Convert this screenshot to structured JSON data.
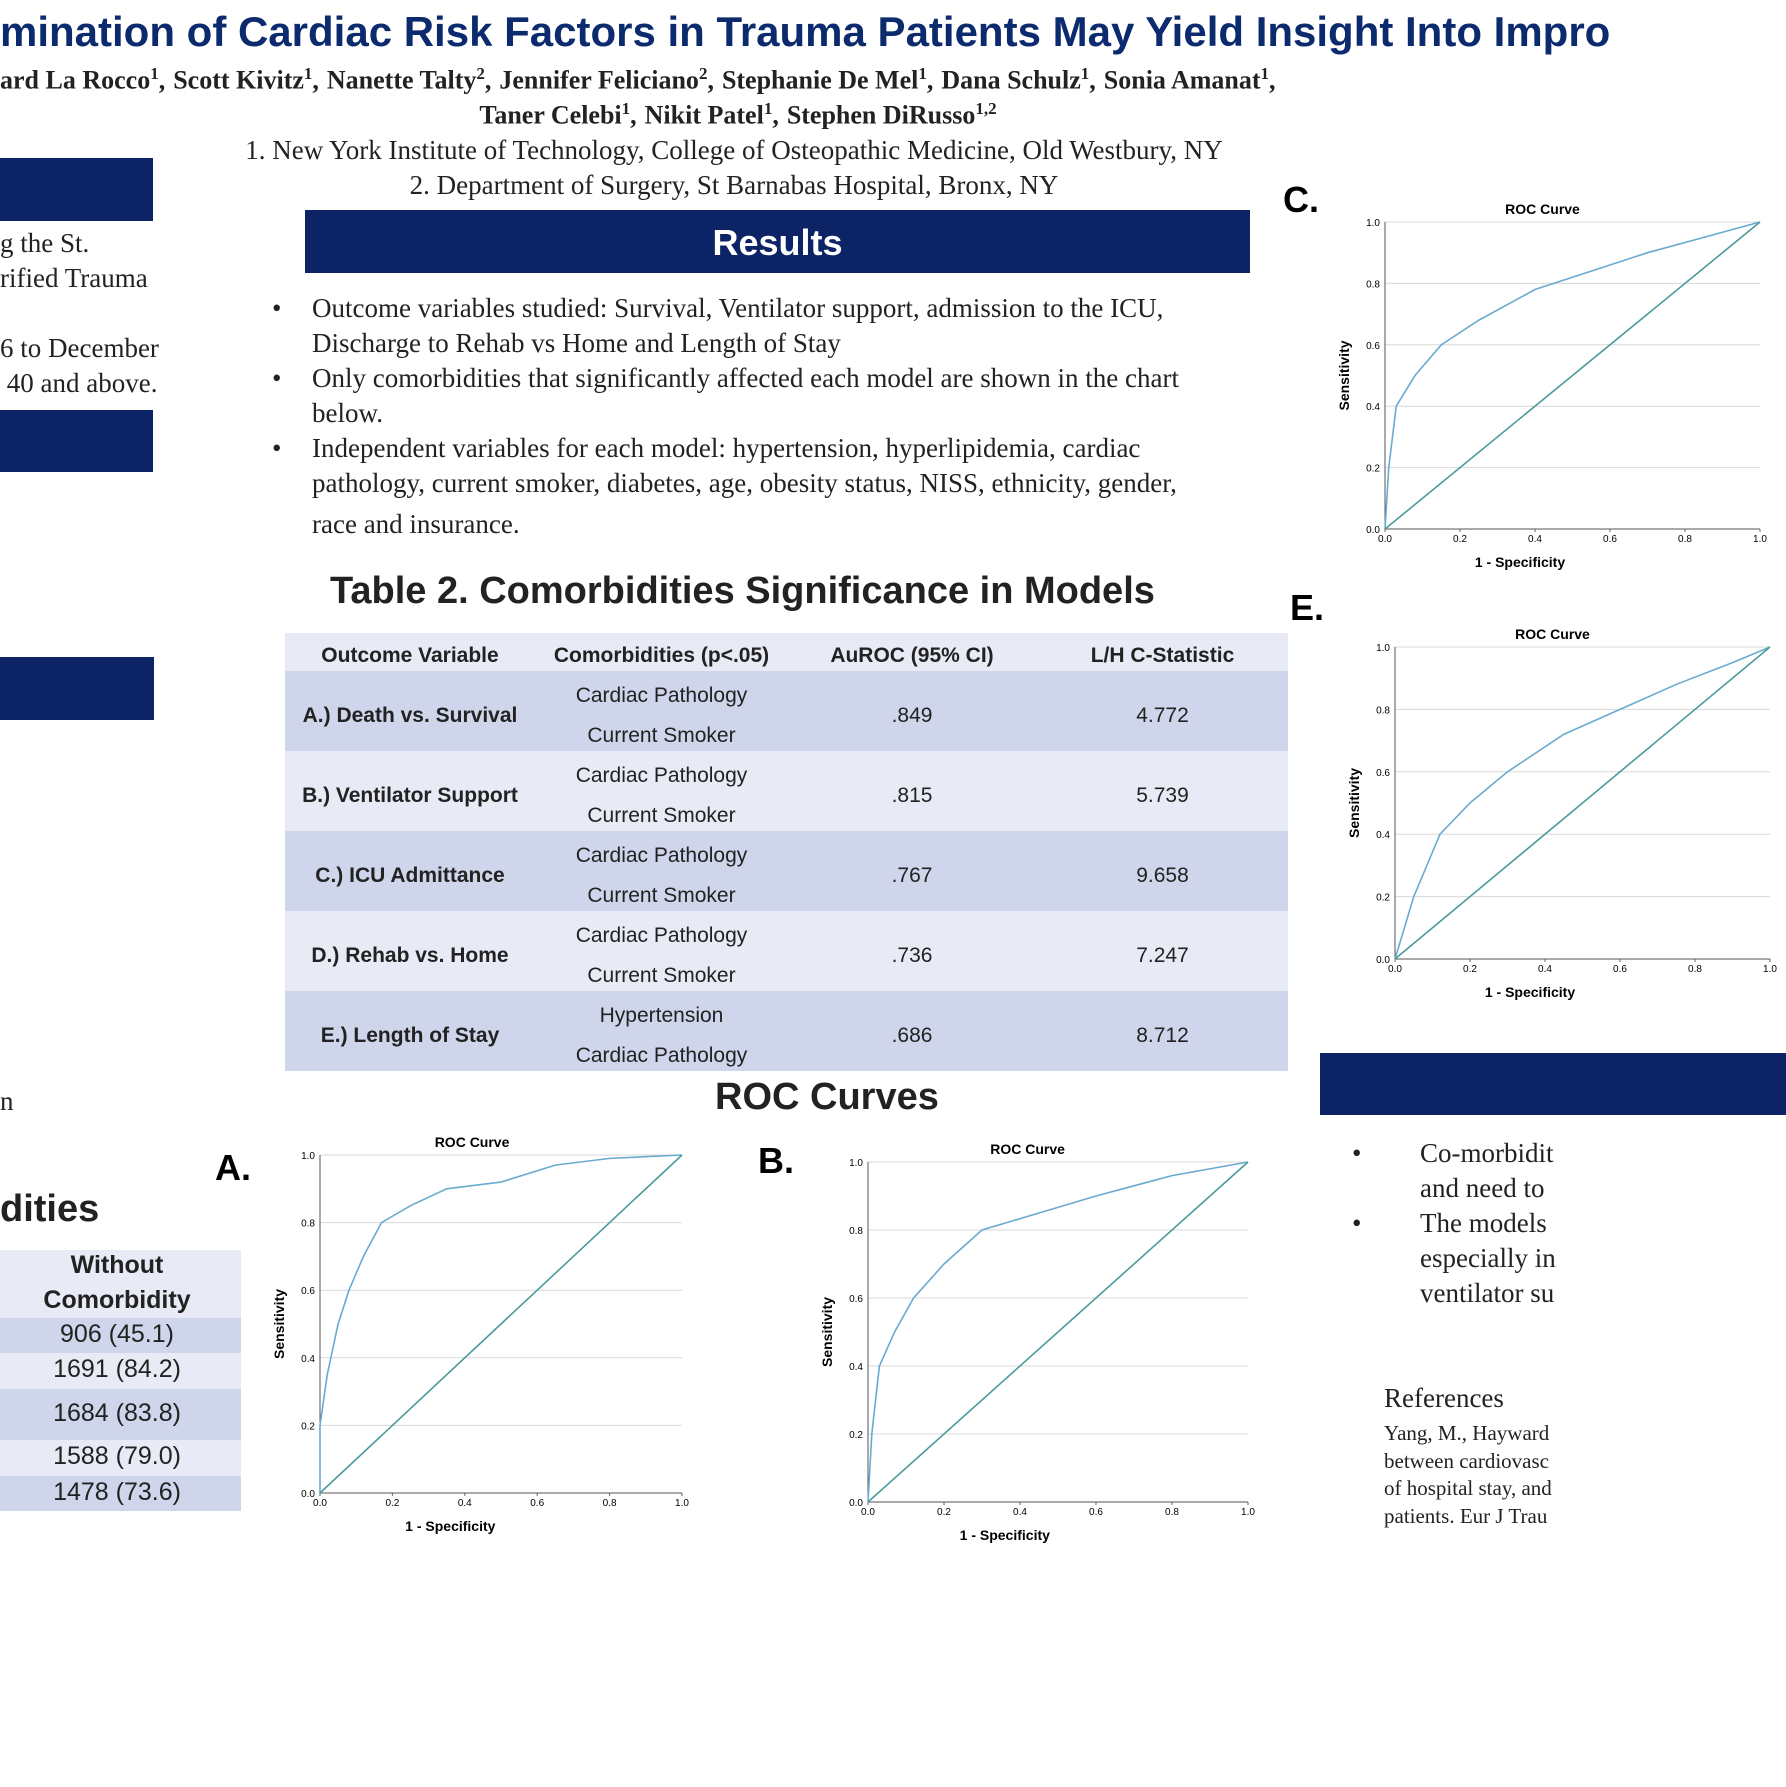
{
  "header": {
    "title": "mination of Cardiac Risk Factors in Trauma Patients May Yield Insight Into Impro",
    "authors_line1": [
      {
        "name": "ard La Rocco",
        "sup": "1",
        "sep": ","
      },
      {
        "name": "Scott Kivitz",
        "sup": "1",
        "sep": ","
      },
      {
        "name": "Nanette Talty",
        "sup": "2",
        "sep": ","
      },
      {
        "name": "Jennifer Feliciano",
        "sup": "2",
        "sep": ","
      },
      {
        "name": "Stephanie De Mel",
        "sup": "1",
        "sep": ","
      },
      {
        "name": "Dana Schulz",
        "sup": "1",
        "sep": ","
      },
      {
        "name": "Sonia Amanat",
        "sup": "1",
        "sep": ","
      }
    ],
    "authors_line2": [
      {
        "name": "Taner Celebi",
        "sup": "1",
        "sep": ","
      },
      {
        "name": "Nikit Patel",
        "sup": "1",
        "sep": ","
      },
      {
        "name": "Stephen DiRusso",
        "sup": "1,2"
      }
    ],
    "affiliations": [
      "1. New York Institute of Technology, College of Osteopathic Medicine, Old Westbury, NY",
      "2. Department of Surgery, St Barnabas Hospital, Bronx, NY"
    ]
  },
  "left": {
    "fragments": [
      "g the St.",
      "rified Trauma",
      "6 to December",
      " 40 and above.",
      "n"
    ],
    "heading": "dities",
    "table": {
      "header": [
        "Without",
        "Comorbidity"
      ],
      "rows": [
        "906 (45.1)",
        "1691 (84.2)",
        "1684 (83.8)",
        "1588 (79.0)",
        "1478 (73.6)"
      ]
    }
  },
  "results": {
    "heading": "Results",
    "bullets": [
      [
        "Outcome variables studied: Survival, Ventilator support, admission to the ICU,",
        "Discharge to Rehab vs Home and Length of Stay"
      ],
      [
        "Only comorbidities that significantly affected each model are shown in the chart",
        "below."
      ],
      [
        "Independent variables for each model: hypertension, hyperlipidemia, cardiac",
        "pathology, current smoker, diabetes, age, obesity status, NISS, ethnicity, gender,",
        "race and insurance."
      ]
    ]
  },
  "table2": {
    "title": "Table 2. Comorbidities Significance in Models",
    "headers": [
      "Outcome Variable",
      "Comorbidities (p<.05)",
      "AuROC (95% CI)",
      "L/H C-Statistic"
    ],
    "rows": [
      [
        "A.) Death vs. Survival",
        [
          "Cardiac Pathology",
          "Current Smoker"
        ],
        ".849",
        "4.772"
      ],
      [
        "B.) Ventilator Support",
        [
          "Cardiac Pathology",
          "Current Smoker"
        ],
        ".815",
        "5.739"
      ],
      [
        "C.) ICU Admittance",
        [
          "Cardiac Pathology",
          "Current Smoker"
        ],
        ".767",
        "9.658"
      ],
      [
        "D.) Rehab vs. Home",
        [
          "Cardiac Pathology",
          "Current Smoker"
        ],
        ".736",
        "7.247"
      ],
      [
        "E.) Length of Stay",
        [
          "Hypertension",
          "Cardiac Pathology"
        ],
        ".686",
        "8.712"
      ]
    ]
  },
  "roc_heading": "ROC Curves",
  "chart_data": [
    {
      "type": "line",
      "label": "A.",
      "title": "ROC Curve",
      "x_label": "1 - Specificity",
      "y_label": "Sensitivity",
      "xlim": [
        0,
        1
      ],
      "ylim": [
        0,
        1
      ],
      "grid": true,
      "xticks": [
        {
          "value": 0,
          "label": "0.0"
        },
        {
          "value": 0.2,
          "label": "0.2"
        },
        {
          "value": 0.4,
          "label": "0.4"
        },
        {
          "value": 0.6,
          "label": "0.6"
        },
        {
          "value": 0.8,
          "label": "0.8"
        },
        {
          "value": 1,
          "label": "1.0"
        }
      ],
      "yticks": [
        {
          "value": 0,
          "label": "0.0"
        },
        {
          "value": 0.2,
          "label": "0.2"
        },
        {
          "value": 0.4,
          "label": "0.4"
        },
        {
          "value": 0.6,
          "label": "0.6"
        },
        {
          "value": 0.8,
          "label": "0.8"
        },
        {
          "value": 1,
          "label": "1.0"
        }
      ],
      "series": [
        {
          "color": "#6aaad0",
          "x": [
            0,
            0,
            0.02,
            0.05,
            0.08,
            0.12,
            0.17,
            0.25,
            0.35,
            0.5,
            0.65,
            0.8,
            1
          ],
          "values": [
            0,
            0.2,
            0.35,
            0.5,
            0.6,
            0.7,
            0.8,
            0.85,
            0.9,
            0.92,
            0.97,
            0.99,
            1
          ]
        },
        {
          "color": "#4a9a9a",
          "x": [
            0,
            1
          ],
          "values": [
            0,
            1
          ]
        }
      ]
    },
    {
      "type": "line",
      "label": "B.",
      "title": "ROC Curve",
      "x_label": "1 - Specificity",
      "y_label": "Sensitivity",
      "xlim": [
        0,
        1
      ],
      "ylim": [
        0,
        1
      ],
      "grid": true,
      "xticks": [
        {
          "value": 0,
          "label": "0.0"
        },
        {
          "value": 0.2,
          "label": "0.2"
        },
        {
          "value": 0.4,
          "label": "0.4"
        },
        {
          "value": 0.6,
          "label": "0.6"
        },
        {
          "value": 0.8,
          "label": "0.8"
        },
        {
          "value": 1,
          "label": "1.0"
        }
      ],
      "yticks": [
        {
          "value": 0,
          "label": "0.0"
        },
        {
          "value": 0.2,
          "label": "0.2"
        },
        {
          "value": 0.4,
          "label": "0.4"
        },
        {
          "value": 0.6,
          "label": "0.6"
        },
        {
          "value": 0.8,
          "label": "0.8"
        },
        {
          "value": 1,
          "label": "1.0"
        }
      ],
      "series": [
        {
          "color": "#6aaad0",
          "x": [
            0,
            0.01,
            0.03,
            0.07,
            0.12,
            0.2,
            0.3,
            0.45,
            0.6,
            0.8,
            1
          ],
          "values": [
            0,
            0.2,
            0.4,
            0.5,
            0.6,
            0.7,
            0.8,
            0.85,
            0.9,
            0.96,
            1
          ]
        },
        {
          "color": "#4a9a9a",
          "x": [
            0,
            1
          ],
          "values": [
            0,
            1
          ]
        }
      ]
    },
    {
      "type": "line",
      "label": "C.",
      "title": "ROC Curve",
      "x_label": "1 - Specificity",
      "y_label": "Sensitivity",
      "xlim": [
        0,
        1
      ],
      "ylim": [
        0,
        1
      ],
      "grid": true,
      "xticks": [
        {
          "value": 0,
          "label": "0.0"
        },
        {
          "value": 0.2,
          "label": "0.2"
        },
        {
          "value": 0.4,
          "label": "0.4"
        },
        {
          "value": 0.6,
          "label": "0.6"
        },
        {
          "value": 0.8,
          "label": "0.8"
        },
        {
          "value": 1,
          "label": "1.0"
        }
      ],
      "yticks": [
        {
          "value": 0,
          "label": "0.0"
        },
        {
          "value": 0.2,
          "label": "0.2"
        },
        {
          "value": 0.4,
          "label": "0.4"
        },
        {
          "value": 0.6,
          "label": "0.6"
        },
        {
          "value": 0.8,
          "label": "0.8"
        },
        {
          "value": 1,
          "label": "1.0"
        }
      ],
      "series": [
        {
          "color": "#6aaad0",
          "x": [
            0,
            0.01,
            0.03,
            0.08,
            0.15,
            0.25,
            0.4,
            0.55,
            0.7,
            0.85,
            1
          ],
          "values": [
            0,
            0.2,
            0.4,
            0.5,
            0.6,
            0.68,
            0.78,
            0.84,
            0.9,
            0.95,
            1
          ]
        },
        {
          "color": "#4a9a9a",
          "x": [
            0,
            1
          ],
          "values": [
            0,
            1
          ]
        }
      ]
    },
    {
      "type": "line",
      "label": "E.",
      "title": "ROC Curve",
      "x_label": "1 - Specificity",
      "y_label": "Sensitivity",
      "xlim": [
        0,
        1
      ],
      "ylim": [
        0,
        1
      ],
      "grid": true,
      "xticks": [
        {
          "value": 0,
          "label": "0.0"
        },
        {
          "value": 0.2,
          "label": "0.2"
        },
        {
          "value": 0.4,
          "label": "0.4"
        },
        {
          "value": 0.6,
          "label": "0.6"
        },
        {
          "value": 0.8,
          "label": "0.8"
        },
        {
          "value": 1,
          "label": "1.0"
        }
      ],
      "yticks": [
        {
          "value": 0,
          "label": "0.0"
        },
        {
          "value": 0.2,
          "label": "0.2"
        },
        {
          "value": 0.4,
          "label": "0.4"
        },
        {
          "value": 0.6,
          "label": "0.6"
        },
        {
          "value": 0.8,
          "label": "0.8"
        },
        {
          "value": 1,
          "label": "1.0"
        }
      ],
      "series": [
        {
          "color": "#6aaad0",
          "x": [
            0,
            0.05,
            0.12,
            0.2,
            0.3,
            0.45,
            0.6,
            0.75,
            0.9,
            1
          ],
          "values": [
            0,
            0.2,
            0.4,
            0.5,
            0.6,
            0.72,
            0.8,
            0.88,
            0.95,
            1
          ]
        },
        {
          "color": "#4a9a9a",
          "x": [
            0,
            1
          ],
          "values": [
            0,
            1
          ]
        }
      ]
    }
  ],
  "right": {
    "bullets": [
      [
        "Co-morbidit",
        "and need to"
      ],
      [
        "The models",
        "especially in",
        "ventilator su"
      ]
    ],
    "references_heading": "References",
    "references": [
      "Yang, M., Hayward",
      "between cardiovasc",
      "of hospital stay, and",
      "patients. Eur J Trau"
    ]
  }
}
